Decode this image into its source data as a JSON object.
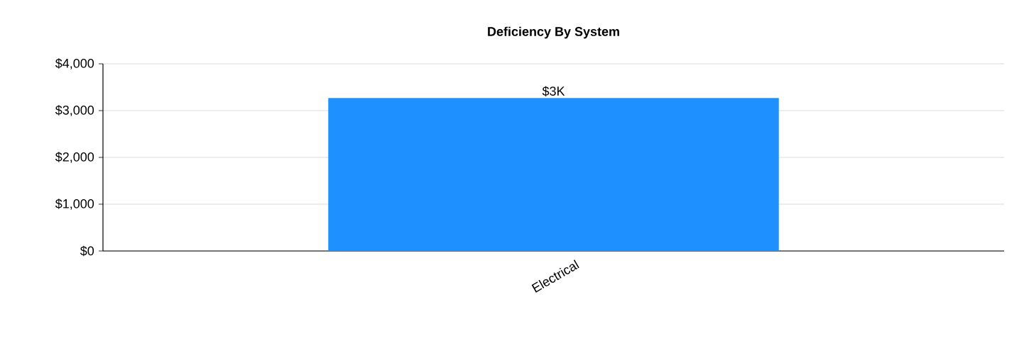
{
  "chart_data": {
    "type": "bar",
    "title": "**Deficiency By System**",
    "categories": [
      "Electrical"
    ],
    "values": [
      3270
    ],
    "value_labels": [
      "$3K"
    ],
    "color": "#1e90ff",
    "ylim": [
      0,
      4000
    ],
    "yticks": [
      {
        "value": 0,
        "label": "$0"
      },
      {
        "value": 1000,
        "label": "$1,000"
      },
      {
        "value": 2000,
        "label": "$2,000"
      },
      {
        "value": 3000,
        "label": "$3,000"
      },
      {
        "value": 4000,
        "label": "$4,000"
      }
    ],
    "grid": "y"
  }
}
